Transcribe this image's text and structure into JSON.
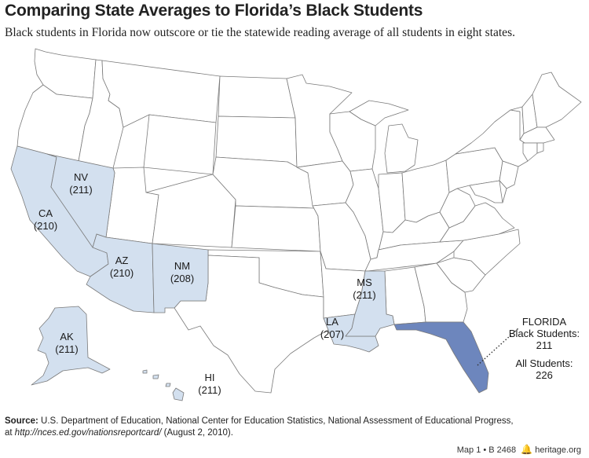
{
  "title": "Comparing State Averages to Florida’s Black Students",
  "subtitle": "Black students in Florida now outscore or tie the statewide reading average of all students in eight states.",
  "colors": {
    "highlight_states": "#d3e0ef",
    "florida": "#6d86bd",
    "other_states": "#ffffff",
    "border": "#7a7a7a"
  },
  "states": {
    "NV": {
      "abbr": "NV",
      "score": "(211)"
    },
    "CA": {
      "abbr": "CA",
      "score": "(210)"
    },
    "AZ": {
      "abbr": "AZ",
      "score": "(210)"
    },
    "NM": {
      "abbr": "NM",
      "score": "(208)"
    },
    "MS": {
      "abbr": "MS",
      "score": "(211)"
    },
    "LA": {
      "abbr": "LA",
      "score": "(207)"
    },
    "AK": {
      "abbr": "AK",
      "score": "(211)"
    },
    "HI": {
      "abbr": "HI",
      "score": "(211)"
    }
  },
  "florida": {
    "name": "FLORIDA",
    "black_label": "Black Students:",
    "black_score": "211",
    "all_label": "All Students:",
    "all_score": "226"
  },
  "source": {
    "label": "Source:",
    "text": "U.S. Department of Education, National Center for Education Statistics, National Assessment of Educational Progress,",
    "at": "at",
    "url": "http://nces.ed.gov/nationsreportcard/",
    "date": "(August 2, 2010)."
  },
  "footer": {
    "map_id": "Map 1 • B 2468",
    "bell_icon": "liberty-bell-icon",
    "site": "heritage.org"
  }
}
